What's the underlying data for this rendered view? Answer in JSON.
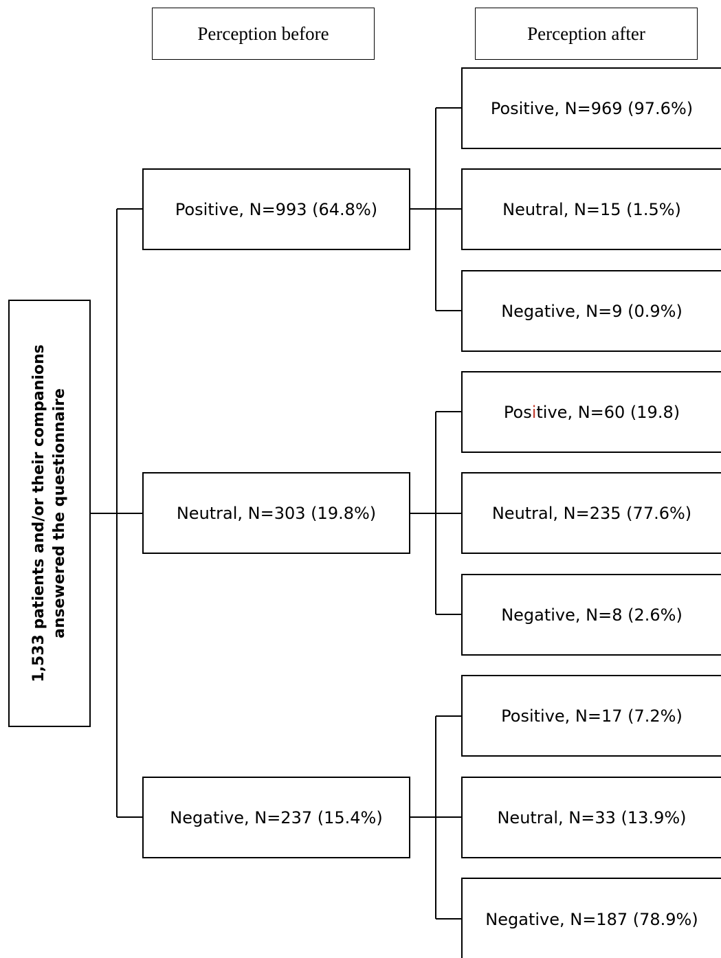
{
  "headers": {
    "before": "Perception before",
    "after": "Perception after"
  },
  "root": {
    "line1": "1,533 patients and/or their companions",
    "line2": "ansewered the questionnaire"
  },
  "before": [
    {
      "label": "Positive, N=993 (64.8%)"
    },
    {
      "label": "Neutral, N=303 (19.8%)"
    },
    {
      "label": "Negative, N=237 (15.4%)"
    }
  ],
  "after": [
    {
      "label": "Positive, N=969 (97.6%)"
    },
    {
      "label": "Neutral, N=15 (1.5%)"
    },
    {
      "label": "Negative, N=9 (0.9%)"
    },
    {
      "label_pre": "Pos",
      "label_mark": "i",
      "label_post": "tive, N=60 (19.8)"
    },
    {
      "label": "Neutral, N=235 (77.6%)"
    },
    {
      "label": "Negative, N=8 (2.6%)"
    },
    {
      "label": "Positive, N=17 (7.2%)"
    },
    {
      "label": "Neutral, N=33 (13.9%)"
    },
    {
      "label": "Negative, N=187 (78.9%)"
    }
  ],
  "colors": {
    "line": "#000000",
    "highlight": "#c0392b"
  }
}
